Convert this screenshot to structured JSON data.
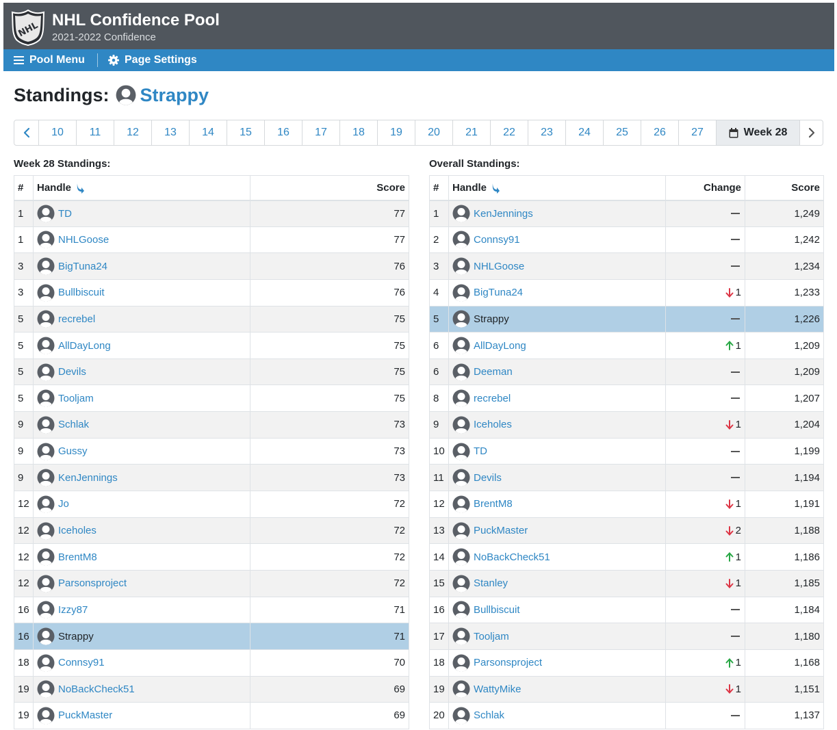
{
  "header": {
    "title": "NHL Confidence Pool",
    "subtitle": "2021-2022 Confidence",
    "logo_icon": "nhl-shield-logo",
    "logo_text": "NHL"
  },
  "menu": {
    "pool_menu_label": "Pool Menu",
    "pool_menu_icon": "hamburger-icon",
    "page_settings_label": "Page Settings",
    "page_settings_icon": "gear-icon"
  },
  "standings": {
    "title": "Standings:",
    "user": "Strappy",
    "user_icon": "user-avatar-icon"
  },
  "pager": {
    "prev_icon": "chevron-left-icon",
    "next_icon": "chevron-right-icon",
    "weeks": [
      "10",
      "11",
      "12",
      "13",
      "14",
      "15",
      "16",
      "17",
      "18",
      "19",
      "20",
      "21",
      "22",
      "23",
      "24",
      "25",
      "26",
      "27"
    ],
    "current_label": "Week 28",
    "current_icon": "calendar-icon"
  },
  "week_standings": {
    "label": "Week 28 Standings:",
    "headers": {
      "rank": "#",
      "handle": "Handle",
      "score": "Score"
    },
    "sort_icon": "sort-arrow-down-icon",
    "rows": [
      {
        "rank": "1",
        "handle": "TD",
        "score": "77"
      },
      {
        "rank": "1",
        "handle": "NHLGoose",
        "score": "77"
      },
      {
        "rank": "3",
        "handle": "BigTuna24",
        "score": "76"
      },
      {
        "rank": "3",
        "handle": "Bullbiscuit",
        "score": "76"
      },
      {
        "rank": "5",
        "handle": "recrebel",
        "score": "75"
      },
      {
        "rank": "5",
        "handle": "AllDayLong",
        "score": "75"
      },
      {
        "rank": "5",
        "handle": "Devils",
        "score": "75"
      },
      {
        "rank": "5",
        "handle": "Tooljam",
        "score": "75"
      },
      {
        "rank": "9",
        "handle": "Schlak",
        "score": "73"
      },
      {
        "rank": "9",
        "handle": "Gussy",
        "score": "73"
      },
      {
        "rank": "9",
        "handle": "KenJennings",
        "score": "73"
      },
      {
        "rank": "12",
        "handle": "Jo",
        "score": "72"
      },
      {
        "rank": "12",
        "handle": "Iceholes",
        "score": "72"
      },
      {
        "rank": "12",
        "handle": "BrentM8",
        "score": "72"
      },
      {
        "rank": "12",
        "handle": "Parsonsproject",
        "score": "72"
      },
      {
        "rank": "16",
        "handle": "Izzy87",
        "score": "71"
      },
      {
        "rank": "16",
        "handle": "Strappy",
        "score": "71",
        "self": true
      },
      {
        "rank": "18",
        "handle": "Connsy91",
        "score": "70"
      },
      {
        "rank": "19",
        "handle": "NoBackCheck51",
        "score": "69"
      },
      {
        "rank": "19",
        "handle": "PuckMaster",
        "score": "69"
      }
    ]
  },
  "overall_standings": {
    "label": "Overall Standings:",
    "headers": {
      "rank": "#",
      "handle": "Handle",
      "change": "Change",
      "score": "Score"
    },
    "sort_icon": "sort-arrow-down-icon",
    "rows": [
      {
        "rank": "1",
        "handle": "KenJennings",
        "change": "none",
        "change_value": "",
        "score": "1,249"
      },
      {
        "rank": "2",
        "handle": "Connsy91",
        "change": "none",
        "change_value": "",
        "score": "1,242"
      },
      {
        "rank": "3",
        "handle": "NHLGoose",
        "change": "none",
        "change_value": "",
        "score": "1,234"
      },
      {
        "rank": "4",
        "handle": "BigTuna24",
        "change": "down",
        "change_value": "1",
        "score": "1,233"
      },
      {
        "rank": "5",
        "handle": "Strappy",
        "change": "none",
        "change_value": "",
        "score": "1,226",
        "self": true
      },
      {
        "rank": "6",
        "handle": "AllDayLong",
        "change": "up",
        "change_value": "1",
        "score": "1,209"
      },
      {
        "rank": "6",
        "handle": "Deeman",
        "change": "none",
        "change_value": "",
        "score": "1,209"
      },
      {
        "rank": "8",
        "handle": "recrebel",
        "change": "none",
        "change_value": "",
        "score": "1,207"
      },
      {
        "rank": "9",
        "handle": "Iceholes",
        "change": "down",
        "change_value": "1",
        "score": "1,204"
      },
      {
        "rank": "10",
        "handle": "TD",
        "change": "none",
        "change_value": "",
        "score": "1,199"
      },
      {
        "rank": "11",
        "handle": "Devils",
        "change": "none",
        "change_value": "",
        "score": "1,194"
      },
      {
        "rank": "12",
        "handle": "BrentM8",
        "change": "down",
        "change_value": "1",
        "score": "1,191"
      },
      {
        "rank": "13",
        "handle": "PuckMaster",
        "change": "down",
        "change_value": "2",
        "score": "1,188"
      },
      {
        "rank": "14",
        "handle": "NoBackCheck51",
        "change": "up",
        "change_value": "1",
        "score": "1,186"
      },
      {
        "rank": "15",
        "handle": "Stanley",
        "change": "down",
        "change_value": "1",
        "score": "1,185"
      },
      {
        "rank": "16",
        "handle": "Bullbiscuit",
        "change": "none",
        "change_value": "",
        "score": "1,184"
      },
      {
        "rank": "17",
        "handle": "Tooljam",
        "change": "none",
        "change_value": "",
        "score": "1,180"
      },
      {
        "rank": "18",
        "handle": "Parsonsproject",
        "change": "up",
        "change_value": "1",
        "score": "1,168"
      },
      {
        "rank": "19",
        "handle": "WattyMike",
        "change": "down",
        "change_value": "1",
        "score": "1,151"
      },
      {
        "rank": "20",
        "handle": "Schlak",
        "change": "none",
        "change_value": "",
        "score": "1,137"
      }
    ]
  },
  "colors": {
    "header_bg": "#50565d",
    "menubar_bg": "#2f87c4",
    "link": "#2f87c4",
    "highlight_row": "#b0cfe5",
    "stripe_row": "#f2f2f2",
    "change_up": "#28a745",
    "change_down": "#dc3545",
    "avatar": "#5a5f66"
  }
}
